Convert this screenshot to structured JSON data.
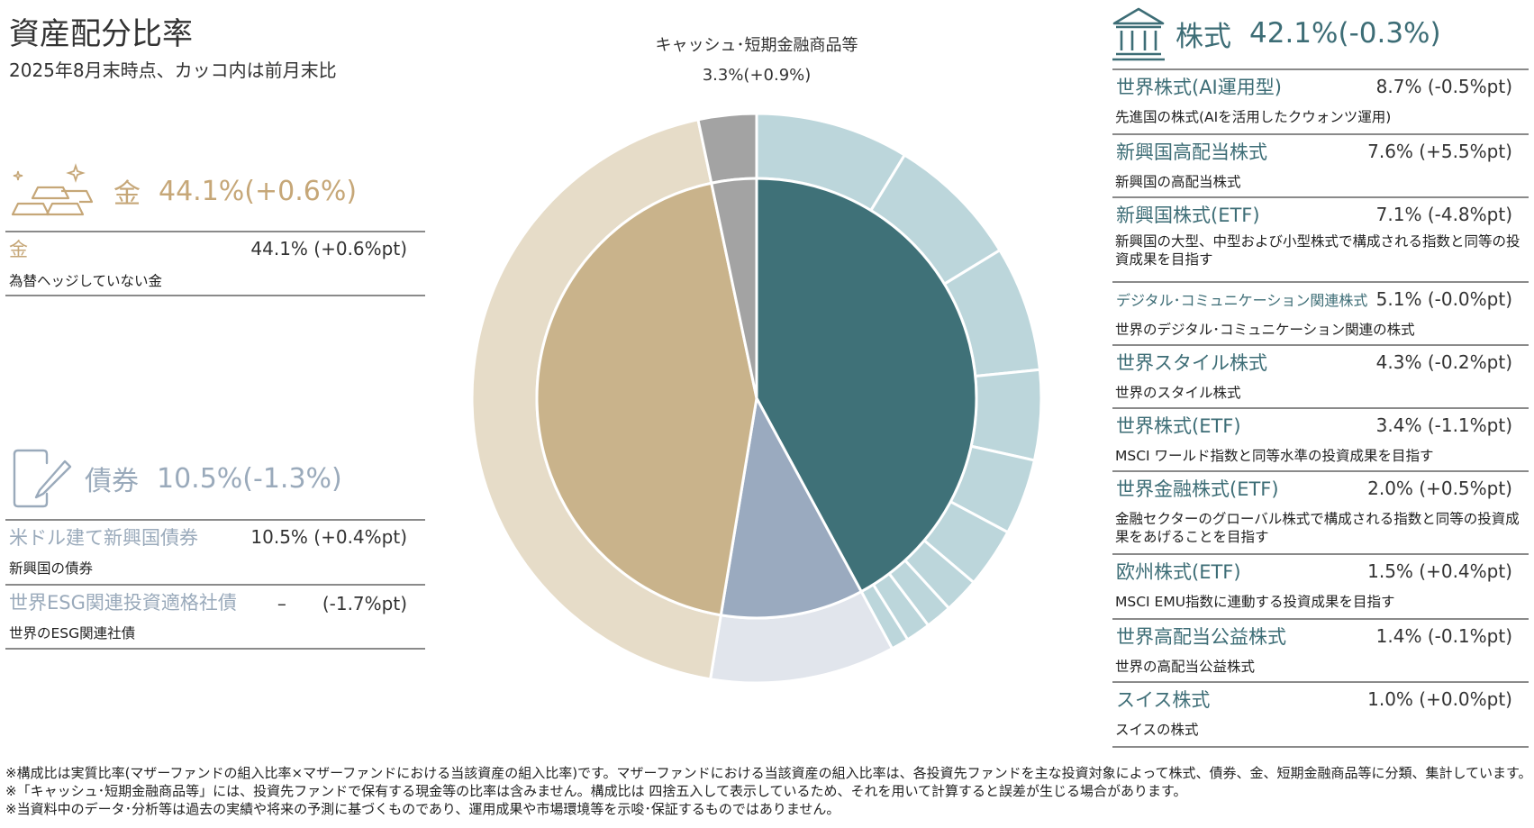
{
  "header": {
    "title": "資産配分比率",
    "subtitle": "2025年8月末時点、カッコ内は前月末比"
  },
  "colors": {
    "gold": "#c6a778",
    "gold_inner": "#c9b38b",
    "gold_outer": "#e6dcc8",
    "bond_inner": "#9aaabf",
    "bond_outer": "#e1e5ec",
    "stock_inner": "#3f7178",
    "stock_outer": "#bcd6db",
    "cash_inner": "#a3a3a3",
    "cash_outer": "#a3a3a3"
  },
  "gold": {
    "name": "金",
    "pct": "44.1%(+0.6%)",
    "items": [
      {
        "label": "金",
        "value": "44.1% (+0.6%pt)",
        "desc": "為替ヘッジしていない金"
      }
    ]
  },
  "bonds": {
    "name": "債券",
    "pct": "10.5%(-1.3%)",
    "items": [
      {
        "label": "米ドル建て新興国債券",
        "value": "10.5% (+0.4%pt)",
        "desc": "新興国の債券"
      },
      {
        "label": "世界ESG関連投資適格社債",
        "value": "–　　(-1.7%pt)",
        "desc": "世界のESG関連社債"
      }
    ]
  },
  "stocks": {
    "name": "株式",
    "pct": "42.1%(-0.3%)",
    "items": [
      {
        "label": "世界株式(AI運用型)",
        "value": "8.7% (-0.5%pt)",
        "desc": "先進国の株式(AIを活用したクウォンツ運用)"
      },
      {
        "label": "新興国高配当株式",
        "value": "7.6% (+5.5%pt)",
        "desc": "新興国の高配当株式"
      },
      {
        "label": "新興国株式(ETF)",
        "value": "7.1% (-4.8%pt)",
        "desc": "新興国の大型、中型および小型株式で構成される指数と同等の投資成果を目指す"
      },
      {
        "label": "デジタル･コミュニケーション関連株式",
        "value": "5.1% (-0.0%pt)",
        "desc": "世界のデジタル･コミュニケーション関連の株式"
      },
      {
        "label": "世界スタイル株式",
        "value": "4.3% (-0.2%pt)",
        "desc": "世界のスタイル株式"
      },
      {
        "label": "世界株式(ETF)",
        "value": "3.4% (-1.1%pt)",
        "desc": "MSCI ワールド指数と同等水準の投資成果を目指す"
      },
      {
        "label": "世界金融株式(ETF)",
        "value": "2.0% (+0.5%pt)",
        "desc": "金融セクターのグローバル株式で構成される指数と同等の投資成果をあげることを目指す"
      },
      {
        "label": "欧州株式(ETF)",
        "value": "1.5% (+0.4%pt)",
        "desc": "MSCI EMU指数に連動する投資成果を目指す"
      },
      {
        "label": "世界高配当公益株式",
        "value": "1.4% (-0.1%pt)",
        "desc": "世界の高配当公益株式"
      },
      {
        "label": "スイス株式",
        "value": "1.0% (+0.0%pt)",
        "desc": "スイスの株式"
      }
    ]
  },
  "cash": {
    "label": "キャッシュ･短期金融商品等",
    "value": "3.3%(+0.9%)"
  },
  "chart_data": {
    "type": "pie",
    "inner": [
      {
        "name": "株式",
        "value": 42.1
      },
      {
        "name": "債券",
        "value": 10.5
      },
      {
        "name": "金",
        "value": 44.1
      },
      {
        "name": "キャッシュ･短期金融商品等",
        "value": 3.3
      }
    ],
    "outer": [
      {
        "name": "世界株式(AI運用型)",
        "value": 8.7
      },
      {
        "name": "新興国高配当株式",
        "value": 7.6
      },
      {
        "name": "新興国株式(ETF)",
        "value": 7.1
      },
      {
        "name": "デジタル･コミュニケーション関連株式",
        "value": 5.1
      },
      {
        "name": "世界スタイル株式",
        "value": 4.3
      },
      {
        "name": "世界株式(ETF)",
        "value": 3.4
      },
      {
        "name": "世界金融株式(ETF)",
        "value": 2.0
      },
      {
        "name": "欧州株式(ETF)",
        "value": 1.5
      },
      {
        "name": "世界高配当公益株式",
        "value": 1.4
      },
      {
        "name": "スイス株式",
        "value": 1.0
      },
      {
        "name": "米ドル建て新興国債券",
        "value": 10.5
      },
      {
        "name": "金",
        "value": 44.1
      },
      {
        "name": "キャッシュ･短期金融商品等",
        "value": 3.3
      }
    ]
  },
  "footnotes": [
    "※構成比は実質比率(マザーファンドの組入比率×マザーファンドにおける当該資産の組入比率)です。マザーファンドにおける当該資産の組入比率は、各投資先ファンドを主な投資対象によって株式、債券、金、短期金融商品等に分類、集計しています。※「キャッシュ･短期金融商品等」には、投資先ファンドで保有する現金等の比率は含みません。構成比は 四捨五入して表示しているため、それを用いて計算すると誤差が生じる場合があります。",
    "※当資料中のデータ･分析等は過去の実績や将来の予測に基づくものであり、運用成果や市場環境等を示唆･保証するものではありません。"
  ]
}
